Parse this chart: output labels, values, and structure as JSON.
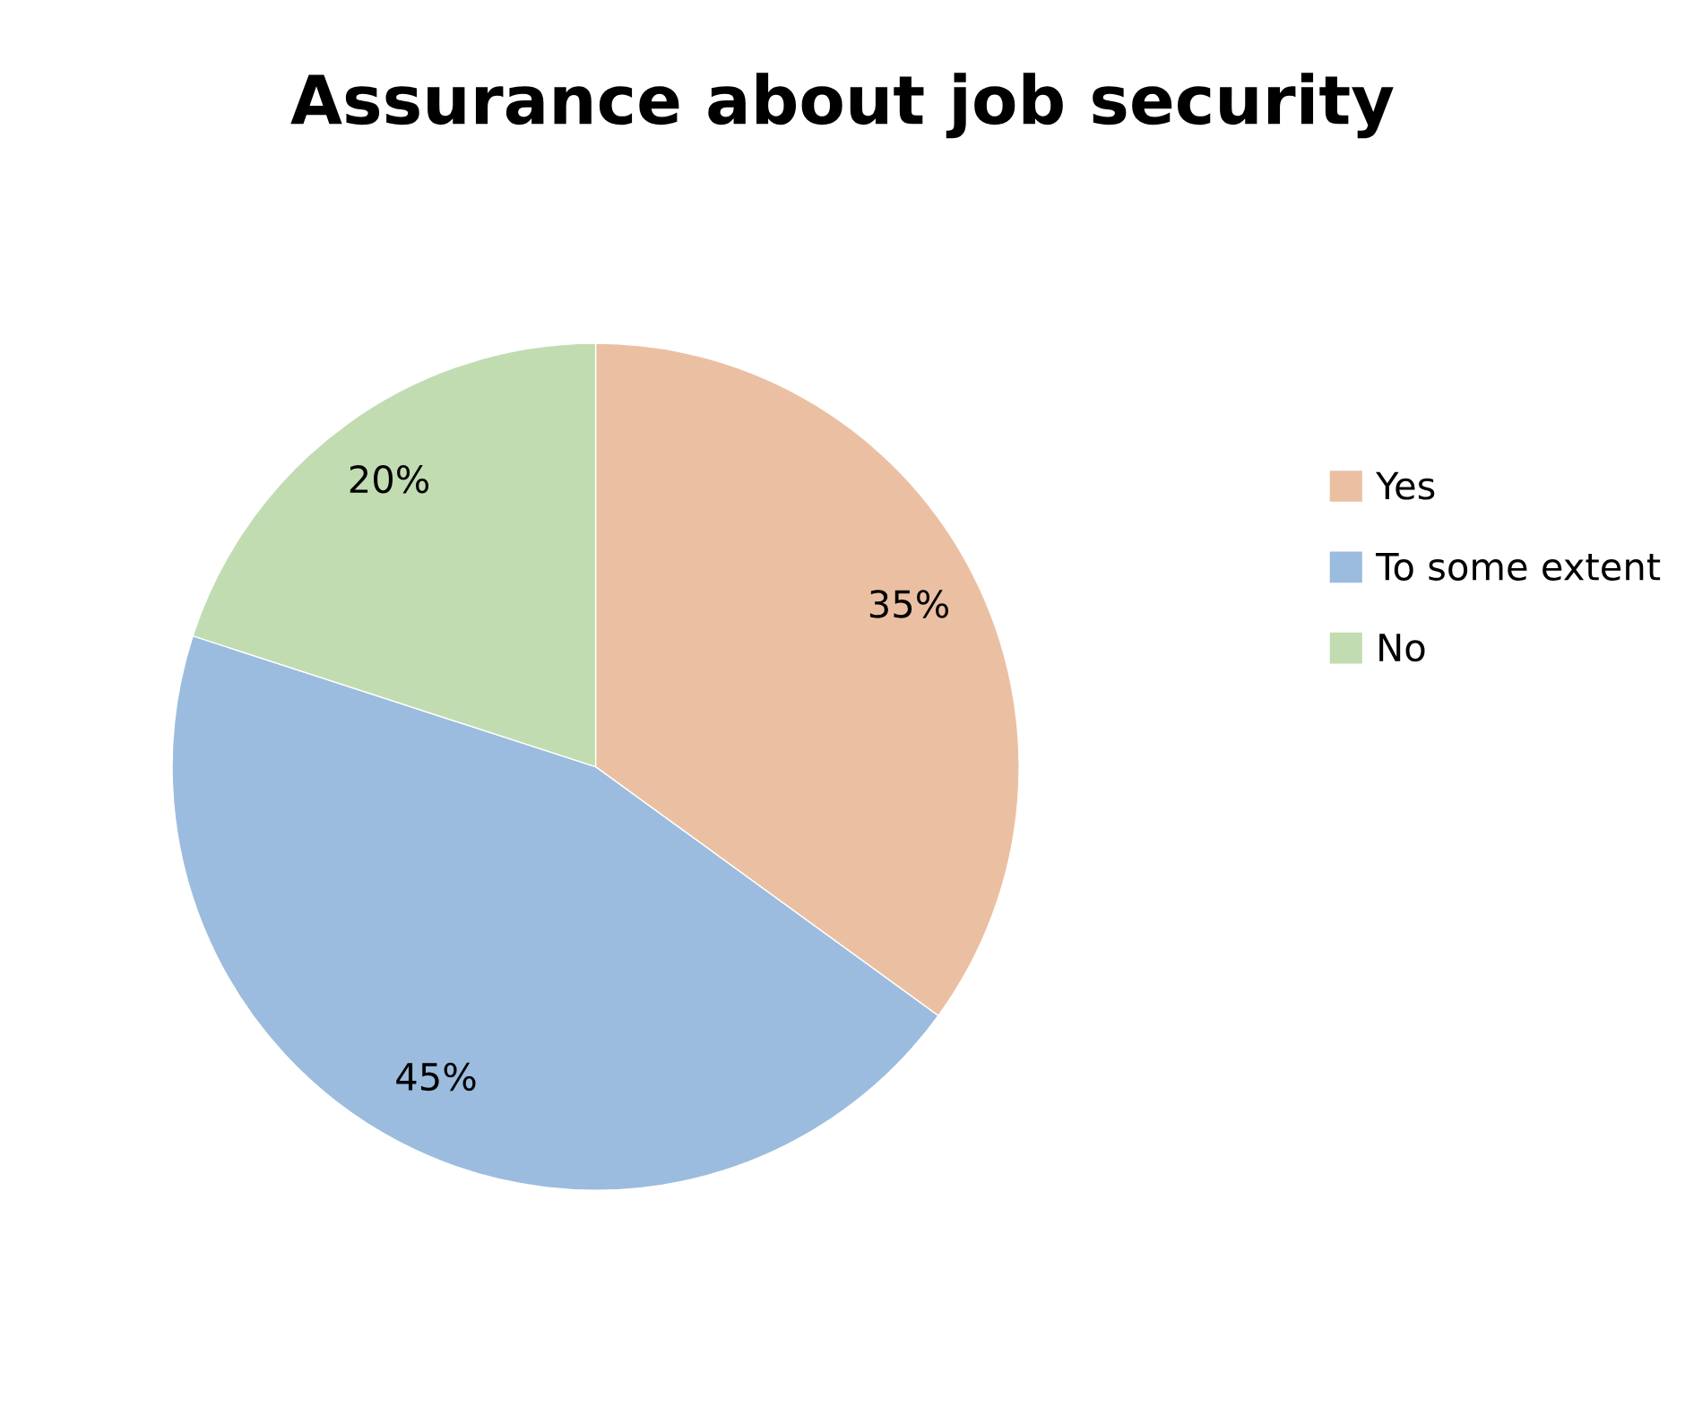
{
  "chart_data": {
    "type": "pie",
    "title": "Assurance about job security",
    "categories": [
      "Yes",
      "To some extent",
      "No"
    ],
    "values": [
      35,
      45,
      20
    ],
    "value_labels": [
      "35%",
      "45%",
      "20%"
    ],
    "colors": [
      "#ebc0a2",
      "#9bbcde",
      "#c2dcb2"
    ],
    "legend": "right"
  }
}
